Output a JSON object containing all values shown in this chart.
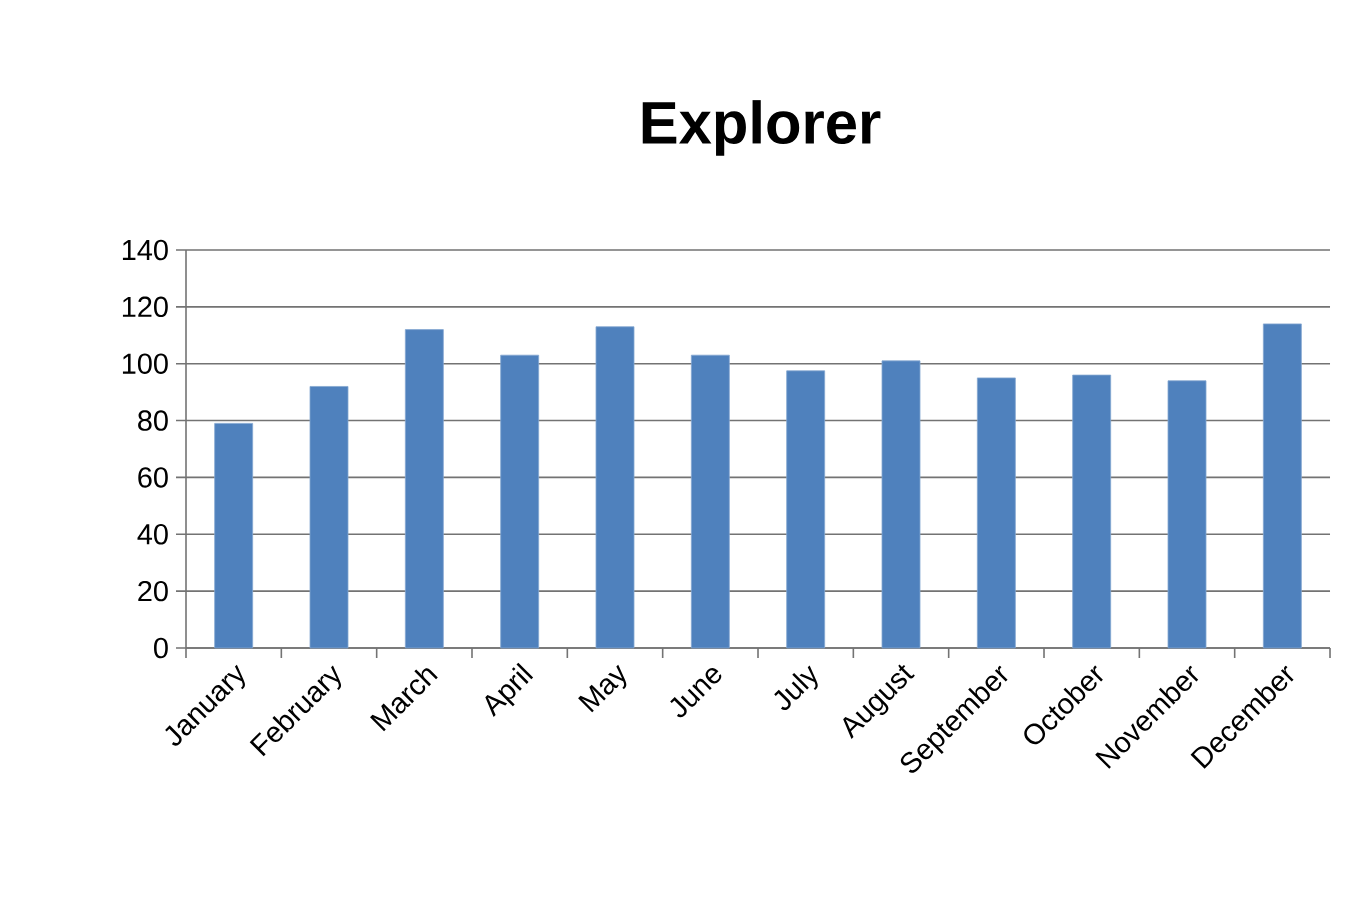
{
  "chart_data": {
    "type": "bar",
    "title": "Explorer",
    "categories": [
      "January",
      "February",
      "March",
      "April",
      "May",
      "June",
      "July",
      "August",
      "September",
      "October",
      "November",
      "December"
    ],
    "values": [
      79,
      92,
      112,
      103,
      113,
      103,
      97.5,
      101,
      95,
      96,
      94,
      114
    ],
    "color": "#4f81bd",
    "ylim": [
      0,
      140
    ],
    "yticks": [
      0,
      20,
      40,
      60,
      80,
      100,
      120,
      140
    ],
    "grid": "y"
  }
}
